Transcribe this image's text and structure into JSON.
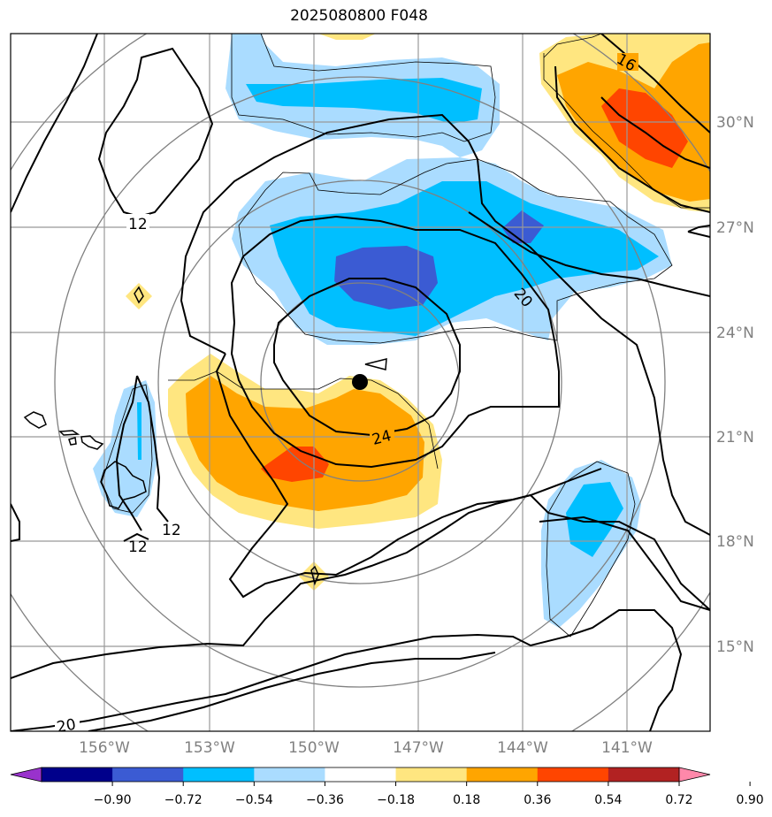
{
  "title": "2025080800 F048",
  "map": {
    "lon_labels": [
      "156°W",
      "153°W",
      "150°W",
      "147°W",
      "144°W",
      "141°W"
    ],
    "lat_labels": [
      "30°N",
      "27°N",
      "24°N",
      "21°N",
      "18°N",
      "15°N"
    ],
    "contour_labels": [
      "16",
      "12",
      "20",
      "24",
      "12",
      "12",
      "20"
    ],
    "center_marker": "storm-center"
  },
  "colorbar": {
    "ticks": [
      "−0.90",
      "−0.72",
      "−0.54",
      "−0.36",
      "−0.18",
      "0.18",
      "0.36",
      "0.54",
      "0.72",
      "0.90"
    ],
    "colors": [
      "#9932cc",
      "#00008b",
      "#3b5bd3",
      "#00bfff",
      "#aadcff",
      "#ffffff",
      "#ffe680",
      "#ffa500",
      "#ff4500",
      "#b22222",
      "#ff88aa"
    ]
  }
}
